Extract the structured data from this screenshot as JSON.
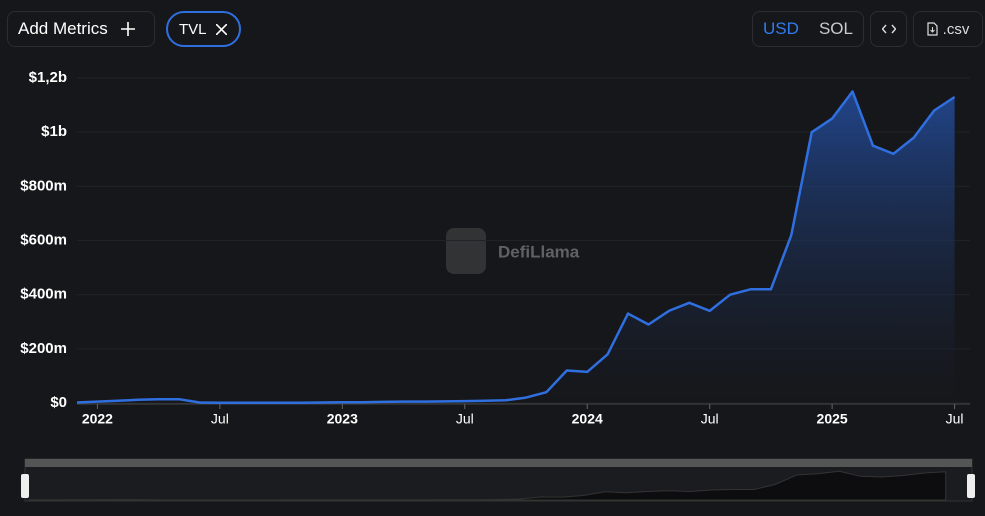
{
  "toolbar": {
    "add_metrics": "Add Metrics",
    "metric": "TVL",
    "currencies": [
      "USD",
      "SOL"
    ],
    "csv": ".csv"
  },
  "watermark": "DefiLlama",
  "chart_data": {
    "type": "area",
    "color": "#2f6fe0",
    "grid": true,
    "x": [
      "2021-12",
      "2022-01",
      "2022-02",
      "2022-03",
      "2022-04",
      "2022-05",
      "2022-06",
      "2022-07",
      "2022-08",
      "2022-09",
      "2022-10",
      "2022-11",
      "2022-12",
      "2023-01",
      "2023-02",
      "2023-03",
      "2023-04",
      "2023-05",
      "2023-06",
      "2023-07",
      "2023-08",
      "2023-09",
      "2023-10",
      "2023-11",
      "2023-12",
      "2024-01",
      "2024-02",
      "2024-03",
      "2024-04",
      "2024-05",
      "2024-06",
      "2024-07",
      "2024-08",
      "2024-09",
      "2024-10",
      "2024-11",
      "2024-12",
      "2025-01",
      "2025-02",
      "2025-03",
      "2025-04",
      "2025-05",
      "2025-06",
      "2025-07"
    ],
    "values": [
      2000000,
      5000000,
      8000000,
      12000000,
      14000000,
      14000000,
      2000000,
      1000000,
      1000000,
      1000000,
      1000000,
      1000000,
      2000000,
      3000000,
      3000000,
      4000000,
      5000000,
      5000000,
      6000000,
      7000000,
      8000000,
      10000000,
      20000000,
      40000000,
      120000000,
      115000000,
      180000000,
      330000000,
      290000000,
      340000000,
      370000000,
      340000000,
      400000000,
      420000000,
      420000000,
      620000000,
      1000000000,
      1050000000,
      1150000000,
      950000000,
      920000000,
      980000000,
      1080000000,
      1130000000
    ],
    "xlim": [
      "2021-12",
      "2025-08"
    ],
    "xticks": [
      {
        "value": "2022-01",
        "label": "2022"
      },
      {
        "value": "2022-07",
        "label": "Jul"
      },
      {
        "value": "2023-01",
        "label": "2023"
      },
      {
        "value": "2023-07",
        "label": "Jul"
      },
      {
        "value": "2024-01",
        "label": "2024"
      },
      {
        "value": "2024-07",
        "label": "Jul"
      },
      {
        "value": "2025-01",
        "label": "2025"
      },
      {
        "value": "2025-07",
        "label": "Jul"
      }
    ],
    "ylim": [
      0,
      1200000000
    ],
    "yticks": [
      {
        "value": 0,
        "label": "$0"
      },
      {
        "value": 200000000,
        "label": "$200m"
      },
      {
        "value": 400000000,
        "label": "$400m"
      },
      {
        "value": 600000000,
        "label": "$600m"
      },
      {
        "value": 800000000,
        "label": "$800m"
      },
      {
        "value": 1000000000,
        "label": "$1b"
      },
      {
        "value": 1200000000,
        "label": "$1,2b"
      }
    ]
  }
}
